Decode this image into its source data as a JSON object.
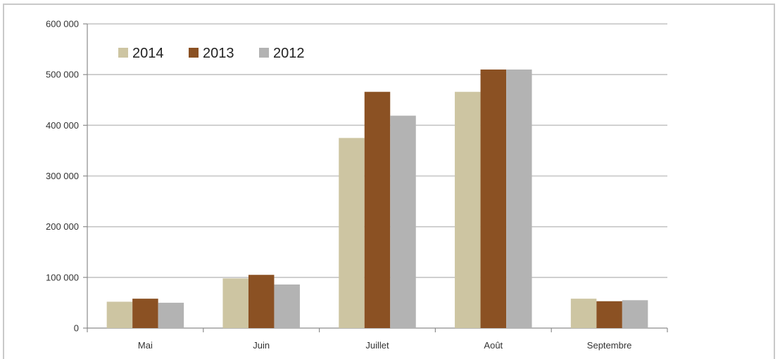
{
  "chart_data": {
    "type": "bar",
    "title": "",
    "xlabel": "",
    "ylabel": "",
    "categories": [
      "Mai",
      "Juin",
      "Juillet",
      "Août",
      "Septembre"
    ],
    "ylim": [
      0,
      600000
    ],
    "yticks": [
      0,
      100000,
      200000,
      300000,
      400000,
      500000,
      600000
    ],
    "ytick_labels": [
      "0",
      "100 000",
      "200 000",
      "300 000",
      "400 000",
      "500 000",
      "600 000"
    ],
    "grid": true,
    "legend_position": "top-left",
    "series": [
      {
        "name": "2014",
        "color": "#cdc5a2",
        "values": [
          52000,
          98000,
          375000,
          466000,
          58000
        ]
      },
      {
        "name": "2013",
        "color": "#8b5123",
        "values": [
          58000,
          105000,
          466000,
          510000,
          53000
        ]
      },
      {
        "name": "2012",
        "color": "#b3b3b3",
        "values": [
          50000,
          86000,
          419000,
          510000,
          55000
        ]
      }
    ]
  }
}
